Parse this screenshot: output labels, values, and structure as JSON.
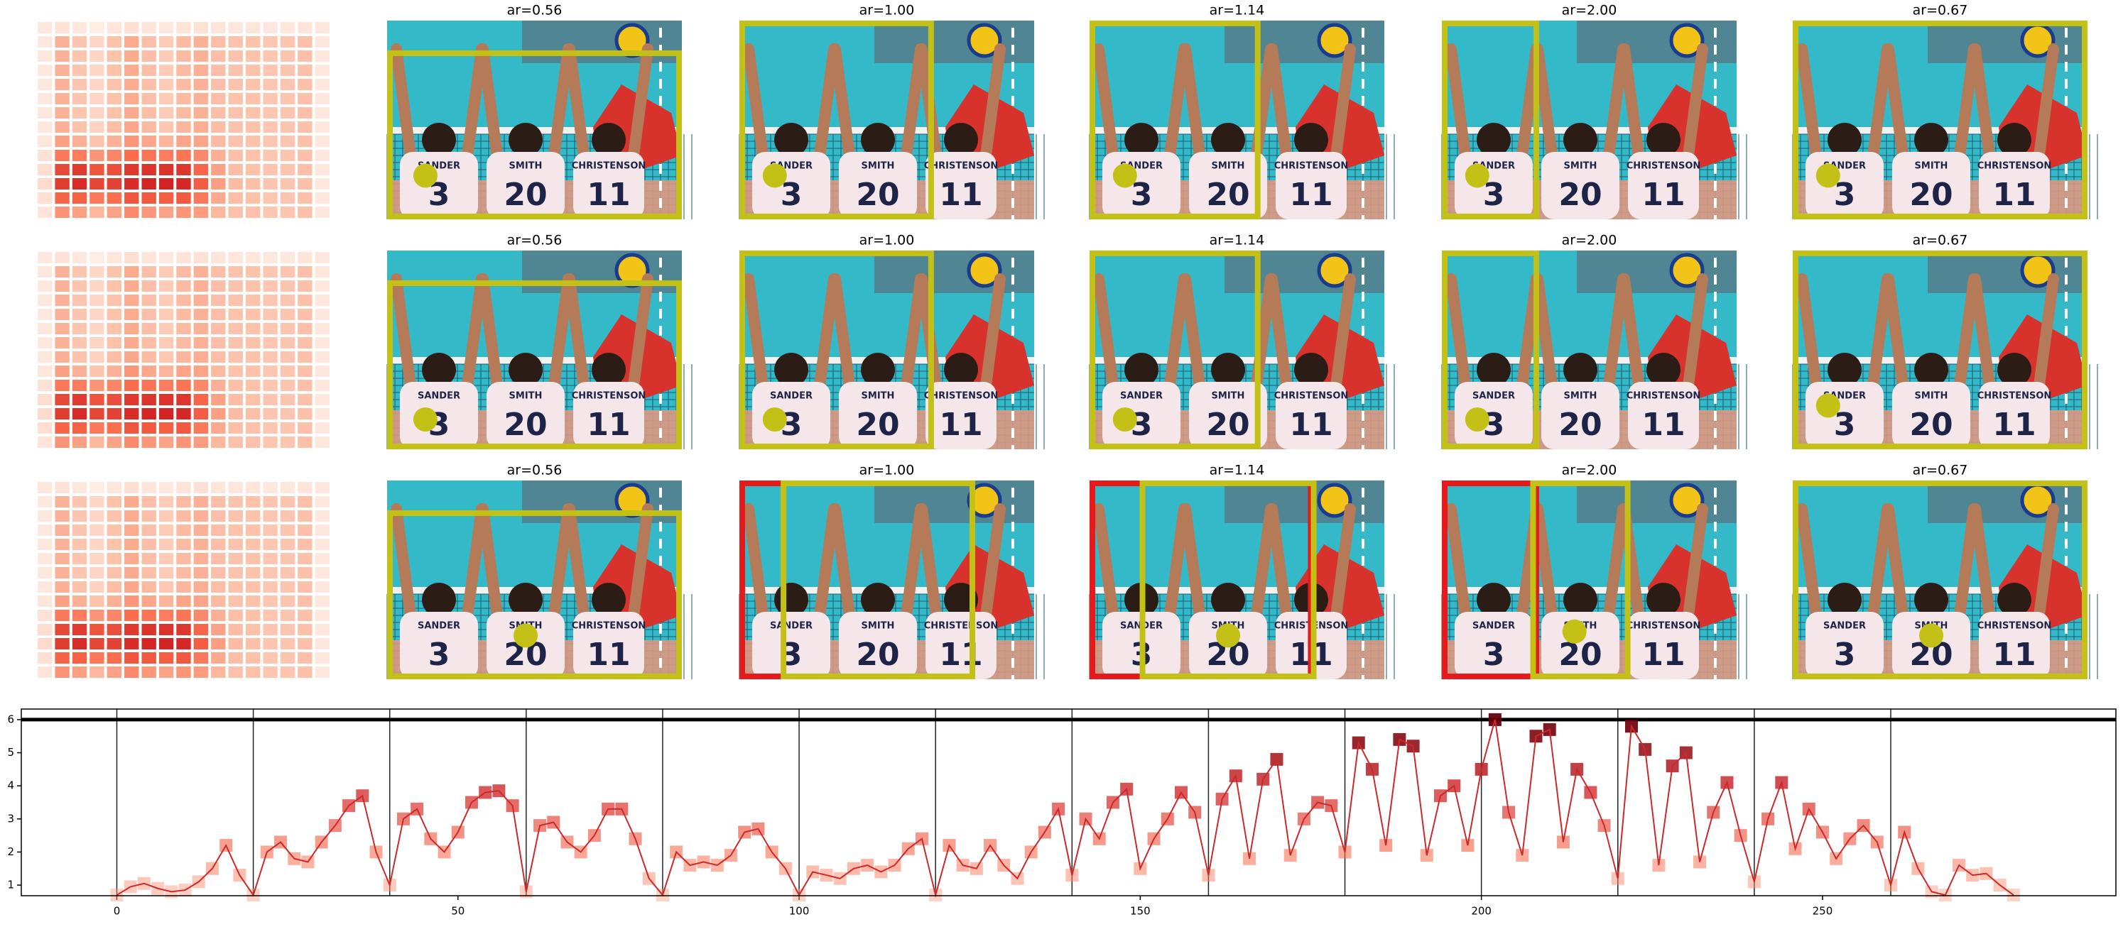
{
  "panels": {
    "titles": [
      "ar=0.56",
      "ar=1.00",
      "ar=1.14",
      "ar=2.00",
      "ar=0.67"
    ]
  },
  "photo": {
    "names": [
      "SANDER",
      "SMITH",
      "CHRISTENSON"
    ],
    "numbers": [
      "3",
      "20",
      "11"
    ]
  },
  "chart_data": {
    "type": "line",
    "x": [
      0,
      2,
      4,
      6,
      8,
      10,
      12,
      14,
      16,
      18,
      20,
      22,
      24,
      26,
      28,
      30,
      32,
      34,
      36,
      38,
      40,
      42,
      44,
      46,
      48,
      50,
      52,
      54,
      56,
      58,
      60,
      62,
      64,
      66,
      68,
      70,
      72,
      74,
      76,
      78,
      80,
      82,
      84,
      86,
      88,
      90,
      92,
      94,
      96,
      98,
      100,
      102,
      104,
      106,
      108,
      110,
      112,
      114,
      116,
      118,
      120,
      122,
      124,
      126,
      128,
      130,
      132,
      134,
      136,
      138,
      140,
      142,
      144,
      146,
      148,
      150,
      152,
      154,
      156,
      158,
      160,
      162,
      164,
      166,
      168,
      170,
      172,
      174,
      176,
      178,
      180,
      182,
      184,
      186,
      188,
      190,
      192,
      194,
      196,
      198,
      200,
      202,
      204,
      206,
      208,
      210,
      212,
      214,
      216,
      218,
      220,
      222,
      224,
      226,
      228,
      230,
      232,
      234,
      236,
      238,
      240,
      242,
      244,
      246,
      248,
      250,
      252,
      254,
      256,
      258,
      260,
      262,
      264,
      266,
      268,
      270,
      272,
      274,
      276,
      278
    ],
    "values": [
      0.7,
      0.95,
      1.05,
      0.9,
      0.8,
      0.85,
      1.1,
      1.5,
      2.2,
      1.3,
      0.7,
      2.0,
      2.3,
      1.8,
      1.7,
      2.3,
      2.8,
      3.4,
      3.7,
      2.0,
      1.0,
      3.0,
      3.3,
      2.4,
      2.0,
      2.6,
      3.5,
      3.8,
      3.85,
      3.4,
      0.8,
      2.8,
      2.9,
      2.3,
      2.0,
      2.5,
      3.3,
      3.3,
      2.4,
      1.2,
      0.7,
      2.0,
      1.6,
      1.7,
      1.6,
      1.9,
      2.6,
      2.7,
      2.0,
      1.5,
      0.7,
      1.4,
      1.3,
      1.2,
      1.5,
      1.6,
      1.4,
      1.6,
      2.1,
      2.4,
      0.7,
      2.2,
      1.6,
      1.5,
      2.2,
      1.6,
      1.2,
      2.0,
      2.6,
      3.3,
      1.3,
      3.0,
      2.4,
      3.5,
      3.9,
      1.5,
      2.4,
      3.0,
      3.8,
      3.2,
      1.3,
      3.6,
      4.3,
      1.8,
      4.2,
      4.8,
      1.9,
      3.0,
      3.5,
      3.4,
      2.0,
      5.3,
      4.5,
      2.2,
      5.4,
      5.2,
      1.9,
      3.7,
      4.0,
      2.2,
      4.5,
      6.0,
      3.2,
      1.9,
      5.5,
      5.7,
      2.3,
      4.5,
      3.8,
      2.8,
      1.2,
      5.8,
      5.1,
      1.6,
      4.6,
      5.0,
      1.7,
      3.2,
      4.1,
      2.5,
      1.1,
      3.0,
      4.1,
      2.1,
      3.3,
      2.6,
      1.8,
      2.4,
      2.8,
      2.3,
      1.0,
      2.6,
      1.5,
      0.8,
      0.7,
      1.6,
      1.3,
      1.35,
      1.0,
      0.7
    ],
    "color": "#cc2a2a",
    "xlim": [
      -14,
      293
    ],
    "ylim": [
      0.68,
      6.32
    ],
    "xticks": [
      0,
      50,
      100,
      150,
      200,
      250
    ],
    "yticks": [
      1,
      2,
      3,
      4,
      5,
      6
    ],
    "vlines": [
      0,
      20,
      40,
      60,
      80,
      100,
      120,
      140,
      160,
      180,
      200,
      220,
      240,
      260
    ],
    "hline": 6
  }
}
